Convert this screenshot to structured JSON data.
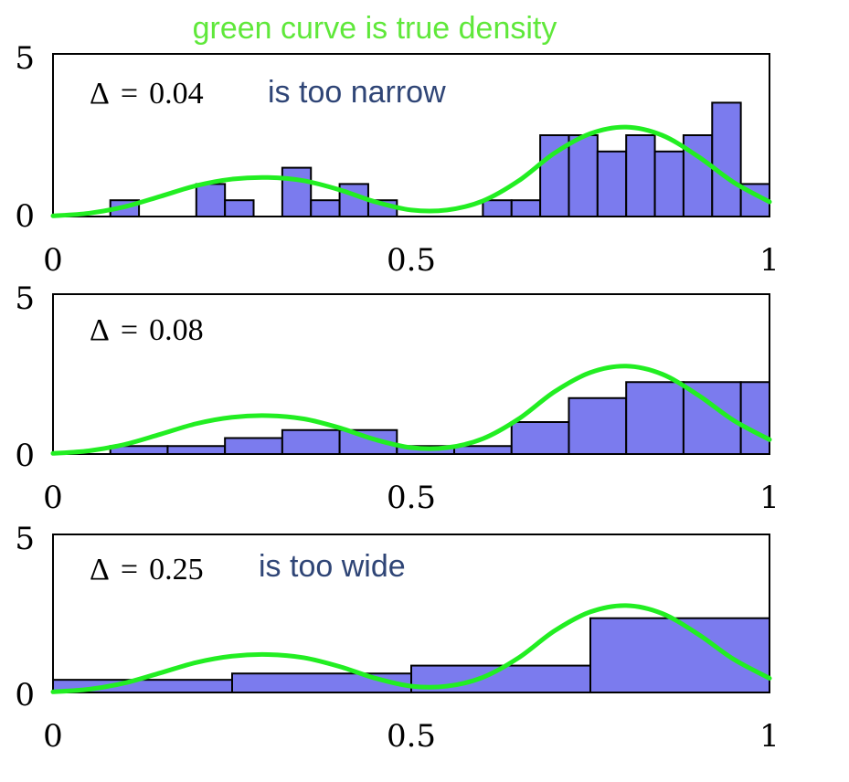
{
  "title": "green curve is true density",
  "colors": {
    "bar_fill": "#7b7bee",
    "bar_stroke": "#000000",
    "curve": "#22ee22",
    "annotation": "#2f4576",
    "title": "#5fe83a"
  },
  "chart_data": [
    {
      "type": "bar",
      "annotation": {
        "symbol": "Δ",
        "equals": "=",
        "value": "0.04",
        "note": "is too narrow"
      },
      "bin_width": 0.04,
      "bin_starts": [
        0.0,
        0.04,
        0.08,
        0.12,
        0.16,
        0.2,
        0.24,
        0.28,
        0.32,
        0.36,
        0.4,
        0.44,
        0.48,
        0.52,
        0.56,
        0.6,
        0.64,
        0.68,
        0.72,
        0.76,
        0.8,
        0.84,
        0.88,
        0.92,
        0.96
      ],
      "values": [
        0,
        0,
        0.5,
        0,
        0,
        1,
        0.5,
        0,
        1.5,
        0.5,
        1,
        0.5,
        0,
        0,
        0,
        0.5,
        0.5,
        2.5,
        2.5,
        2,
        2.5,
        2,
        2.5,
        3.5,
        1
      ],
      "xlim": [
        0,
        1
      ],
      "ylim": [
        0,
        5
      ],
      "xticks": [
        "0",
        "0.5",
        "1"
      ],
      "yticks": [
        "0",
        "5"
      ],
      "curve": {
        "x": [
          0,
          0.05,
          0.1,
          0.15,
          0.2,
          0.25,
          0.3,
          0.35,
          0.4,
          0.45,
          0.5,
          0.55,
          0.6,
          0.65,
          0.7,
          0.75,
          0.8,
          0.85,
          0.9,
          0.95,
          1.0
        ],
        "y": [
          0.02,
          0.1,
          0.3,
          0.62,
          0.95,
          1.15,
          1.2,
          1.1,
          0.82,
          0.45,
          0.2,
          0.2,
          0.48,
          1.1,
          1.95,
          2.55,
          2.75,
          2.5,
          1.85,
          1.05,
          0.45
        ]
      }
    },
    {
      "type": "bar",
      "annotation": {
        "symbol": "Δ",
        "equals": "=",
        "value": "0.08",
        "note": ""
      },
      "bin_width": 0.08,
      "bin_starts": [
        0.0,
        0.08,
        0.16,
        0.24,
        0.32,
        0.4,
        0.48,
        0.56,
        0.64,
        0.72,
        0.8,
        0.88,
        0.96
      ],
      "values": [
        0,
        0.25,
        0.25,
        0.5,
        0.75,
        0.75,
        0.25,
        0.25,
        1.0,
        1.75,
        2.25,
        2.25,
        2.25
      ],
      "xlim": [
        0,
        1
      ],
      "ylim": [
        0,
        5
      ],
      "xticks": [
        "0",
        "0.5",
        "1"
      ],
      "yticks": [
        "0",
        "5"
      ],
      "curve": {
        "x": [
          0,
          0.05,
          0.1,
          0.15,
          0.2,
          0.25,
          0.3,
          0.35,
          0.4,
          0.45,
          0.5,
          0.55,
          0.6,
          0.65,
          0.7,
          0.75,
          0.8,
          0.85,
          0.9,
          0.95,
          1.0
        ],
        "y": [
          0.02,
          0.1,
          0.3,
          0.62,
          0.95,
          1.15,
          1.2,
          1.1,
          0.82,
          0.45,
          0.2,
          0.2,
          0.48,
          1.1,
          1.95,
          2.55,
          2.75,
          2.5,
          1.85,
          1.05,
          0.45
        ]
      }
    },
    {
      "type": "bar",
      "annotation": {
        "symbol": "Δ",
        "equals": "=",
        "value": "0.25",
        "note": "is too wide"
      },
      "bin_width": 0.25,
      "bin_starts": [
        0.0,
        0.25,
        0.5,
        0.75
      ],
      "values": [
        0.4,
        0.6,
        0.85,
        2.35
      ],
      "xlim": [
        0,
        1
      ],
      "ylim": [
        0,
        5
      ],
      "xticks": [
        "0",
        "0.5",
        "1"
      ],
      "yticks": [
        "0",
        "5"
      ],
      "curve": {
        "x": [
          0,
          0.05,
          0.1,
          0.15,
          0.2,
          0.25,
          0.3,
          0.35,
          0.4,
          0.45,
          0.5,
          0.55,
          0.6,
          0.65,
          0.7,
          0.75,
          0.8,
          0.85,
          0.9,
          0.95,
          1.0
        ],
        "y": [
          0.02,
          0.1,
          0.3,
          0.62,
          0.95,
          1.15,
          1.2,
          1.1,
          0.82,
          0.45,
          0.2,
          0.2,
          0.48,
          1.1,
          1.95,
          2.55,
          2.75,
          2.5,
          1.85,
          1.05,
          0.45
        ]
      }
    }
  ]
}
